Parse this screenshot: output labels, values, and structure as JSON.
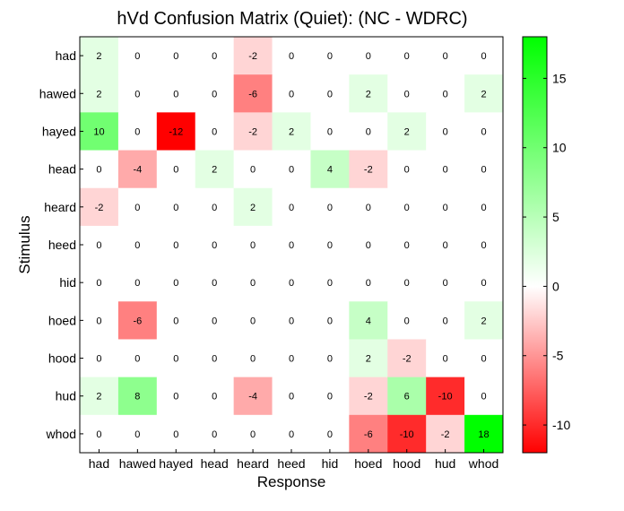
{
  "chart_data": {
    "type": "heatmap",
    "title": "hVd Confusion Matrix (Quiet): (NC - WDRC)",
    "xlabel": "Response",
    "ylabel": "Stimulus",
    "x_categories": [
      "had",
      "hawed",
      "hayed",
      "head",
      "heard",
      "heed",
      "hid",
      "hoed",
      "hood",
      "hud",
      "whod"
    ],
    "y_categories": [
      "had",
      "hawed",
      "hayed",
      "head",
      "heard",
      "heed",
      "hid",
      "hoed",
      "hood",
      "hud",
      "whod"
    ],
    "values": [
      [
        2,
        0,
        0,
        0,
        -2,
        0,
        0,
        0,
        0,
        0,
        0
      ],
      [
        2,
        0,
        0,
        0,
        -6,
        0,
        0,
        2,
        0,
        0,
        2
      ],
      [
        10,
        0,
        -12,
        0,
        -2,
        2,
        0,
        0,
        2,
        0,
        0
      ],
      [
        0,
        -4,
        0,
        2,
        0,
        0,
        4,
        -2,
        0,
        0,
        0
      ],
      [
        -2,
        0,
        0,
        0,
        2,
        0,
        0,
        0,
        0,
        0,
        0
      ],
      [
        0,
        0,
        0,
        0,
        0,
        0,
        0,
        0,
        0,
        0,
        0
      ],
      [
        0,
        0,
        0,
        0,
        0,
        0,
        0,
        0,
        0,
        0,
        0
      ],
      [
        0,
        -6,
        0,
        0,
        0,
        0,
        0,
        4,
        0,
        0,
        2
      ],
      [
        0,
        0,
        0,
        0,
        0,
        0,
        0,
        2,
        -2,
        0,
        0
      ],
      [
        2,
        8,
        0,
        0,
        -4,
        0,
        0,
        -2,
        6,
        -10,
        0
      ],
      [
        0,
        0,
        0,
        0,
        0,
        0,
        0,
        -6,
        -10,
        -2,
        18
      ]
    ],
    "colorbar": {
      "min": -12,
      "max": 18,
      "ticks": [
        -10,
        -5,
        0,
        5,
        10,
        15
      ],
      "low_color": "#ff0000",
      "mid_color": "#ffffff",
      "high_color": "#00ff00"
    },
    "grid": false
  }
}
